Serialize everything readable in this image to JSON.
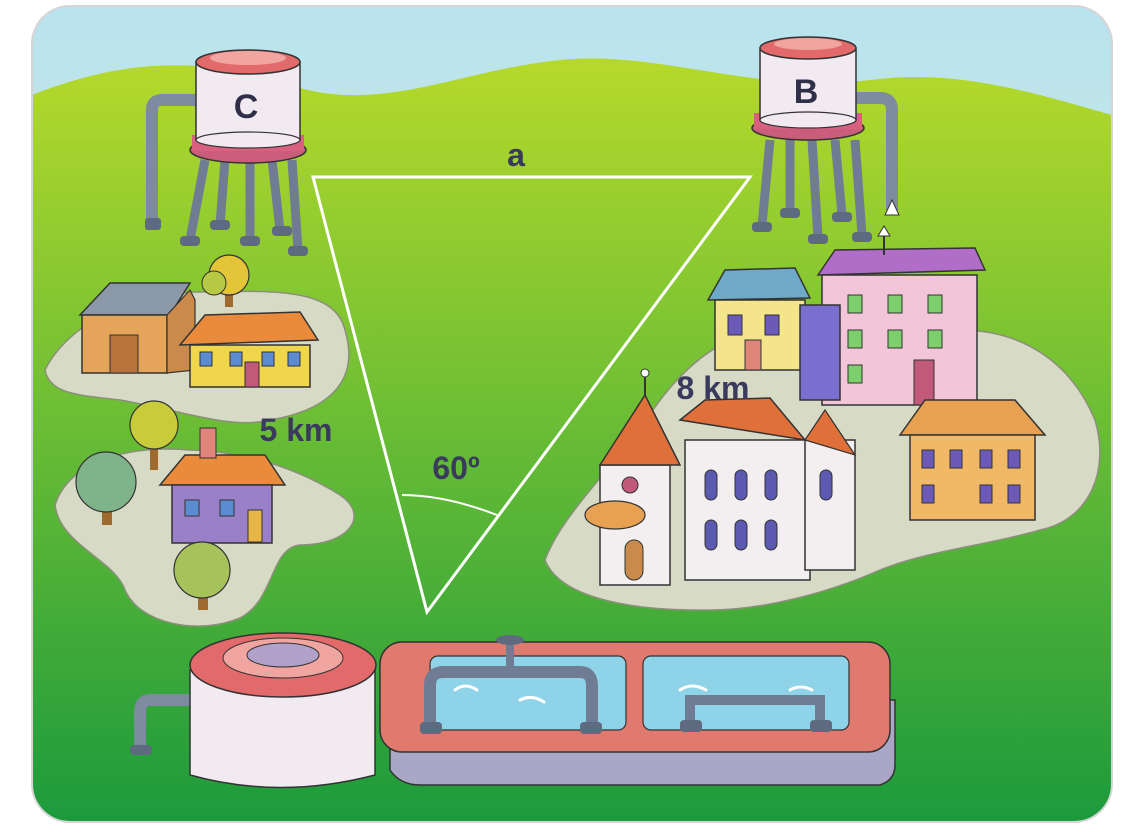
{
  "diagram": {
    "tank_c_label": "C",
    "tank_b_label": "B",
    "side_a_label": "a",
    "side_cd_label": "5 km",
    "side_bd_label": "8 km",
    "angle_label": "60º"
  },
  "colors": {
    "grass_light": "#a9d42a",
    "grass_dark": "#1f9a3a",
    "sky": "#bfe6e6",
    "triangle": "#ffffff",
    "label": "#3a3a5e",
    "tank_body": "#f1eaf1",
    "tank_band": "#e36a6a",
    "pool_rim": "#e07a6e",
    "water": "#8fd3e8"
  }
}
